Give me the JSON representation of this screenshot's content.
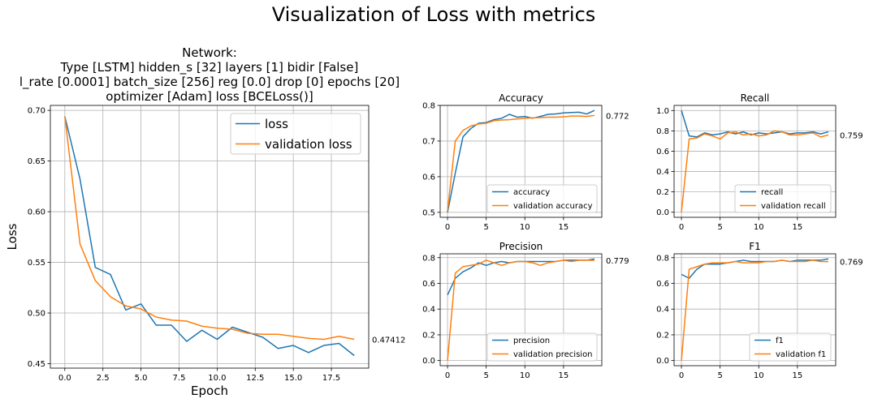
{
  "figure": {
    "suptitle": "Visualization of Loss with metrics"
  },
  "chart_data": [
    {
      "id": "loss",
      "type": "line",
      "title_lines": [
        "Network:",
        "Type [LSTM] hidden_s [32] layers [1] bidir [False]",
        "l_rate [0.0001] batch_size [256] reg [0.0] drop [0] epochs [20]",
        "optimizer [Adam] loss [BCELoss()]"
      ],
      "xlabel": "Epoch",
      "ylabel": "Loss",
      "xlim": [
        -0.95,
        19.95
      ],
      "ylim": [
        0.4456,
        0.7049
      ],
      "xticks": [
        0.0,
        2.5,
        5.0,
        7.5,
        10.0,
        12.5,
        15.0,
        17.5
      ],
      "xtick_labels": [
        "0.0",
        "2.5",
        "5.0",
        "7.5",
        "10.0",
        "12.5",
        "15.0",
        "17.5"
      ],
      "yticks": [
        0.45,
        0.5,
        0.55,
        0.6,
        0.65,
        0.7
      ],
      "ytick_labels": [
        "0.45",
        "0.50",
        "0.55",
        "0.60",
        "0.65",
        "0.70"
      ],
      "grid": true,
      "legend_position": "top-right",
      "side_label": "0.47412",
      "x": [
        0,
        1,
        2,
        3,
        4,
        5,
        6,
        7,
        8,
        9,
        10,
        11,
        12,
        13,
        14,
        15,
        16,
        17,
        18,
        19
      ],
      "series": [
        {
          "name": "loss",
          "color": "#1f77b4",
          "values": [
            0.694,
            0.632,
            0.545,
            0.538,
            0.503,
            0.509,
            0.488,
            0.488,
            0.472,
            0.483,
            0.474,
            0.486,
            0.481,
            0.476,
            0.465,
            0.468,
            0.461,
            0.468,
            0.47,
            0.458
          ]
        },
        {
          "name": "validation loss",
          "color": "#ff7f0e",
          "values": [
            0.694,
            0.568,
            0.532,
            0.516,
            0.507,
            0.504,
            0.496,
            0.493,
            0.492,
            0.487,
            0.485,
            0.484,
            0.48,
            0.479,
            0.479,
            0.477,
            0.475,
            0.474,
            0.477,
            0.474
          ]
        }
      ]
    },
    {
      "id": "accuracy",
      "type": "line",
      "title": "Accuracy",
      "xlim": [
        -0.95,
        19.95
      ],
      "ylim": [
        0.486,
        0.8
      ],
      "xticks": [
        0,
        5,
        10,
        15
      ],
      "xtick_labels": [
        "0",
        "5",
        "10",
        "15"
      ],
      "yticks": [
        0.5,
        0.6,
        0.7,
        0.8
      ],
      "ytick_labels": [
        "0.5",
        "0.6",
        "0.7",
        "0.8"
      ],
      "grid": true,
      "legend_position": "bottom-right",
      "side_label": "0.772",
      "x": [
        0,
        1,
        2,
        3,
        4,
        5,
        6,
        7,
        8,
        9,
        10,
        11,
        12,
        13,
        14,
        15,
        16,
        17,
        18,
        19
      ],
      "series": [
        {
          "name": "accuracy",
          "color": "#1f77b4",
          "values": [
            0.5,
            0.61,
            0.712,
            0.735,
            0.75,
            0.752,
            0.76,
            0.764,
            0.775,
            0.767,
            0.769,
            0.764,
            0.769,
            0.775,
            0.776,
            0.779,
            0.78,
            0.781,
            0.776,
            0.786
          ]
        },
        {
          "name": "validation accuracy",
          "color": "#ff7f0e",
          "values": [
            0.504,
            0.7,
            0.73,
            0.742,
            0.748,
            0.75,
            0.757,
            0.759,
            0.76,
            0.762,
            0.764,
            0.765,
            0.766,
            0.767,
            0.767,
            0.768,
            0.77,
            0.77,
            0.769,
            0.772
          ]
        }
      ]
    },
    {
      "id": "recall",
      "type": "line",
      "title": "Recall",
      "xlim": [
        -0.95,
        19.95
      ],
      "ylim": [
        -0.05,
        1.05
      ],
      "xticks": [
        0,
        5,
        10,
        15
      ],
      "xtick_labels": [
        "0",
        "5",
        "10",
        "15"
      ],
      "yticks": [
        0.0,
        0.2,
        0.4,
        0.6,
        0.8,
        1.0
      ],
      "ytick_labels": [
        "0.0",
        "0.2",
        "0.4",
        "0.6",
        "0.8",
        "1.0"
      ],
      "grid": true,
      "legend_position": "bottom-right",
      "side_label": "0.759",
      "x": [
        0,
        1,
        2,
        3,
        4,
        5,
        6,
        7,
        8,
        9,
        10,
        11,
        12,
        13,
        14,
        15,
        16,
        17,
        18,
        19
      ],
      "series": [
        {
          "name": "recall",
          "color": "#1f77b4",
          "values": [
            1.0,
            0.75,
            0.74,
            0.78,
            0.76,
            0.77,
            0.79,
            0.77,
            0.79,
            0.76,
            0.78,
            0.77,
            0.78,
            0.79,
            0.77,
            0.78,
            0.78,
            0.79,
            0.77,
            0.79
          ]
        },
        {
          "name": "validation recall",
          "color": "#ff7f0e",
          "values": [
            0.0,
            0.72,
            0.73,
            0.77,
            0.75,
            0.72,
            0.78,
            0.79,
            0.76,
            0.77,
            0.75,
            0.76,
            0.8,
            0.79,
            0.76,
            0.76,
            0.77,
            0.78,
            0.74,
            0.759
          ]
        }
      ]
    },
    {
      "id": "precision",
      "type": "line",
      "title": "Precision",
      "xlim": [
        -0.95,
        19.95
      ],
      "ylim": [
        -0.04,
        0.83
      ],
      "xticks": [
        0,
        5,
        10,
        15
      ],
      "xtick_labels": [
        "0",
        "5",
        "10",
        "15"
      ],
      "yticks": [
        0.0,
        0.2,
        0.4,
        0.6,
        0.8
      ],
      "ytick_labels": [
        "0.0",
        "0.2",
        "0.4",
        "0.6",
        "0.8"
      ],
      "grid": true,
      "legend_position": "bottom-right",
      "side_label": "0.779",
      "x": [
        0,
        1,
        2,
        3,
        4,
        5,
        6,
        7,
        8,
        9,
        10,
        11,
        12,
        13,
        14,
        15,
        16,
        17,
        18,
        19
      ],
      "series": [
        {
          "name": "precision",
          "color": "#1f77b4",
          "values": [
            0.51,
            0.64,
            0.69,
            0.72,
            0.76,
            0.74,
            0.76,
            0.77,
            0.76,
            0.77,
            0.77,
            0.77,
            0.77,
            0.77,
            0.77,
            0.78,
            0.78,
            0.78,
            0.78,
            0.79
          ]
        },
        {
          "name": "validation precision",
          "color": "#ff7f0e",
          "values": [
            0.0,
            0.68,
            0.73,
            0.74,
            0.75,
            0.78,
            0.76,
            0.74,
            0.76,
            0.77,
            0.77,
            0.76,
            0.74,
            0.76,
            0.77,
            0.78,
            0.77,
            0.78,
            0.78,
            0.779
          ]
        }
      ]
    },
    {
      "id": "f1",
      "type": "line",
      "title": "F1",
      "xlim": [
        -0.95,
        19.95
      ],
      "ylim": [
        -0.04,
        0.83
      ],
      "xticks": [
        0,
        5,
        10,
        15
      ],
      "xtick_labels": [
        "0",
        "5",
        "10",
        "15"
      ],
      "yticks": [
        0.0,
        0.2,
        0.4,
        0.6,
        0.8
      ],
      "ytick_labels": [
        "0.0",
        "0.2",
        "0.4",
        "0.6",
        "0.8"
      ],
      "grid": true,
      "legend_position": "bottom-right",
      "side_label": "0.769",
      "x": [
        0,
        1,
        2,
        3,
        4,
        5,
        6,
        7,
        8,
        9,
        10,
        11,
        12,
        13,
        14,
        15,
        16,
        17,
        18,
        19
      ],
      "series": [
        {
          "name": "f1",
          "color": "#1f77b4",
          "values": [
            0.67,
            0.64,
            0.71,
            0.75,
            0.75,
            0.75,
            0.76,
            0.77,
            0.78,
            0.77,
            0.77,
            0.77,
            0.77,
            0.78,
            0.77,
            0.78,
            0.78,
            0.78,
            0.78,
            0.79
          ]
        },
        {
          "name": "validation f1",
          "color": "#ff7f0e",
          "values": [
            0.0,
            0.71,
            0.73,
            0.75,
            0.76,
            0.76,
            0.76,
            0.77,
            0.76,
            0.76,
            0.76,
            0.77,
            0.77,
            0.78,
            0.77,
            0.77,
            0.77,
            0.78,
            0.77,
            0.769
          ]
        }
      ]
    }
  ]
}
